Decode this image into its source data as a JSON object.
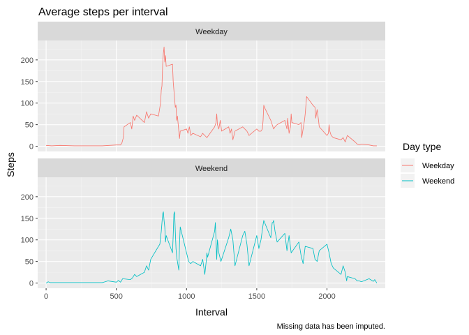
{
  "chart_data": {
    "type": "line",
    "title": "Average steps per interval",
    "xlabel": "Interval",
    "ylabel": "Steps",
    "caption": "Missing data has been imputed.",
    "xlim": [
      -60,
      2415
    ],
    "ylim": [
      -12,
      245
    ],
    "xticks": [
      0,
      500,
      1000,
      1500,
      2000
    ],
    "yticks": [
      0,
      50,
      100,
      150,
      200
    ],
    "grid": true,
    "facets": [
      "Weekday",
      "Weekend"
    ],
    "legend": {
      "title": "Day type",
      "position": "right",
      "entries": [
        "Weekday",
        "Weekend"
      ]
    },
    "series": [
      {
        "name": "Weekday",
        "color": "#F8766D",
        "points": [
          [
            0,
            2
          ],
          [
            40,
            1
          ],
          [
            100,
            2
          ],
          [
            200,
            1
          ],
          [
            300,
            1
          ],
          [
            400,
            1
          ],
          [
            450,
            2
          ],
          [
            500,
            3
          ],
          [
            530,
            3
          ],
          [
            540,
            8
          ],
          [
            550,
            20
          ],
          [
            555,
            45
          ],
          [
            600,
            55
          ],
          [
            610,
            40
          ],
          [
            620,
            70
          ],
          [
            630,
            60
          ],
          [
            645,
            72
          ],
          [
            700,
            55
          ],
          [
            715,
            80
          ],
          [
            730,
            65
          ],
          [
            745,
            75
          ],
          [
            800,
            70
          ],
          [
            815,
            100
          ],
          [
            820,
            130
          ],
          [
            825,
            140
          ],
          [
            830,
            190
          ],
          [
            835,
            215
          ],
          [
            840,
            230
          ],
          [
            845,
            195
          ],
          [
            850,
            210
          ],
          [
            855,
            185
          ],
          [
            900,
            190
          ],
          [
            905,
            150
          ],
          [
            915,
            110
          ],
          [
            920,
            90
          ],
          [
            925,
            95
          ],
          [
            930,
            60
          ],
          [
            935,
            70
          ],
          [
            945,
            35
          ],
          [
            950,
            18
          ],
          [
            955,
            35
          ],
          [
            1000,
            40
          ],
          [
            1010,
            30
          ],
          [
            1020,
            45
          ],
          [
            1030,
            25
          ],
          [
            1045,
            30
          ],
          [
            1100,
            22
          ],
          [
            1115,
            30
          ],
          [
            1130,
            25
          ],
          [
            1145,
            20
          ],
          [
            1200,
            45
          ],
          [
            1210,
            55
          ],
          [
            1215,
            75
          ],
          [
            1220,
            50
          ],
          [
            1230,
            40
          ],
          [
            1240,
            60
          ],
          [
            1250,
            35
          ],
          [
            1300,
            45
          ],
          [
            1310,
            30
          ],
          [
            1320,
            40
          ],
          [
            1330,
            15
          ],
          [
            1345,
            35
          ],
          [
            1400,
            45
          ],
          [
            1415,
            40
          ],
          [
            1430,
            35
          ],
          [
            1445,
            25
          ],
          [
            1500,
            40
          ],
          [
            1515,
            35
          ],
          [
            1530,
            35
          ],
          [
            1540,
            40
          ],
          [
            1545,
            60
          ],
          [
            1550,
            95
          ],
          [
            1555,
            90
          ],
          [
            1600,
            60
          ],
          [
            1610,
            50
          ],
          [
            1620,
            40
          ],
          [
            1630,
            45
          ],
          [
            1645,
            50
          ],
          [
            1700,
            60
          ],
          [
            1715,
            40
          ],
          [
            1720,
            65
          ],
          [
            1730,
            30
          ],
          [
            1740,
            45
          ],
          [
            1745,
            75
          ],
          [
            1750,
            55
          ],
          [
            1800,
            50
          ],
          [
            1815,
            55
          ],
          [
            1820,
            20
          ],
          [
            1830,
            40
          ],
          [
            1840,
            60
          ],
          [
            1845,
            75
          ],
          [
            1850,
            95
          ],
          [
            1855,
            115
          ],
          [
            1900,
            95
          ],
          [
            1915,
            90
          ],
          [
            1920,
            65
          ],
          [
            1930,
            85
          ],
          [
            1940,
            60
          ],
          [
            1945,
            45
          ],
          [
            2000,
            25
          ],
          [
            2010,
            30
          ],
          [
            2015,
            50
          ],
          [
            2020,
            35
          ],
          [
            2030,
            25
          ],
          [
            2045,
            20
          ],
          [
            2100,
            15
          ],
          [
            2115,
            20
          ],
          [
            2130,
            10
          ],
          [
            2145,
            25
          ],
          [
            2200,
            10
          ],
          [
            2215,
            5
          ],
          [
            2230,
            3
          ],
          [
            2245,
            5
          ],
          [
            2300,
            3
          ],
          [
            2330,
            1
          ],
          [
            2355,
            1
          ]
        ]
      },
      {
        "name": "Weekend",
        "color": "#00BFC4",
        "points": [
          [
            0,
            0
          ],
          [
            15,
            3
          ],
          [
            30,
            1
          ],
          [
            100,
            1
          ],
          [
            200,
            1
          ],
          [
            300,
            1
          ],
          [
            400,
            1
          ],
          [
            420,
            3
          ],
          [
            440,
            5
          ],
          [
            500,
            2
          ],
          [
            515,
            6
          ],
          [
            530,
            2
          ],
          [
            545,
            10
          ],
          [
            600,
            8
          ],
          [
            615,
            12
          ],
          [
            630,
            20
          ],
          [
            645,
            15
          ],
          [
            700,
            25
          ],
          [
            715,
            40
          ],
          [
            730,
            30
          ],
          [
            745,
            55
          ],
          [
            800,
            85
          ],
          [
            810,
            90
          ],
          [
            820,
            120
          ],
          [
            830,
            160
          ],
          [
            835,
            165
          ],
          [
            840,
            145
          ],
          [
            845,
            130
          ],
          [
            850,
            95
          ],
          [
            855,
            110
          ],
          [
            900,
            70
          ],
          [
            905,
            110
          ],
          [
            910,
            160
          ],
          [
            915,
            165
          ],
          [
            920,
            120
          ],
          [
            925,
            80
          ],
          [
            930,
            60
          ],
          [
            935,
            50
          ],
          [
            945,
            30
          ],
          [
            950,
            90
          ],
          [
            955,
            130
          ],
          [
            1000,
            70
          ],
          [
            1015,
            50
          ],
          [
            1030,
            45
          ],
          [
            1045,
            50
          ],
          [
            1100,
            40
          ],
          [
            1115,
            55
          ],
          [
            1130,
            20
          ],
          [
            1140,
            50
          ],
          [
            1145,
            70
          ],
          [
            1150,
            60
          ],
          [
            1200,
            120
          ],
          [
            1205,
            140
          ],
          [
            1215,
            55
          ],
          [
            1220,
            100
          ],
          [
            1230,
            70
          ],
          [
            1245,
            50
          ],
          [
            1300,
            105
          ],
          [
            1315,
            125
          ],
          [
            1330,
            100
          ],
          [
            1345,
            40
          ],
          [
            1400,
            110
          ],
          [
            1415,
            120
          ],
          [
            1430,
            90
          ],
          [
            1445,
            40
          ],
          [
            1500,
            110
          ],
          [
            1515,
            80
          ],
          [
            1530,
            100
          ],
          [
            1545,
            135
          ],
          [
            1550,
            145
          ],
          [
            1600,
            105
          ],
          [
            1610,
            140
          ],
          [
            1615,
            140
          ],
          [
            1620,
            145
          ],
          [
            1630,
            120
          ],
          [
            1645,
            95
          ],
          [
            1700,
            115
          ],
          [
            1715,
            75
          ],
          [
            1730,
            110
          ],
          [
            1745,
            70
          ],
          [
            1800,
            95
          ],
          [
            1815,
            65
          ],
          [
            1830,
            45
          ],
          [
            1845,
            85
          ],
          [
            1900,
            80
          ],
          [
            1915,
            55
          ],
          [
            1930,
            50
          ],
          [
            1945,
            75
          ],
          [
            2000,
            90
          ],
          [
            2015,
            70
          ],
          [
            2030,
            45
          ],
          [
            2045,
            35
          ],
          [
            2100,
            20
          ],
          [
            2115,
            40
          ],
          [
            2130,
            25
          ],
          [
            2140,
            5
          ],
          [
            2145,
            15
          ],
          [
            2200,
            10
          ],
          [
            2215,
            5
          ],
          [
            2230,
            5
          ],
          [
            2245,
            3
          ],
          [
            2300,
            10
          ],
          [
            2330,
            4
          ],
          [
            2340,
            8
          ],
          [
            2355,
            0
          ]
        ]
      }
    ]
  }
}
